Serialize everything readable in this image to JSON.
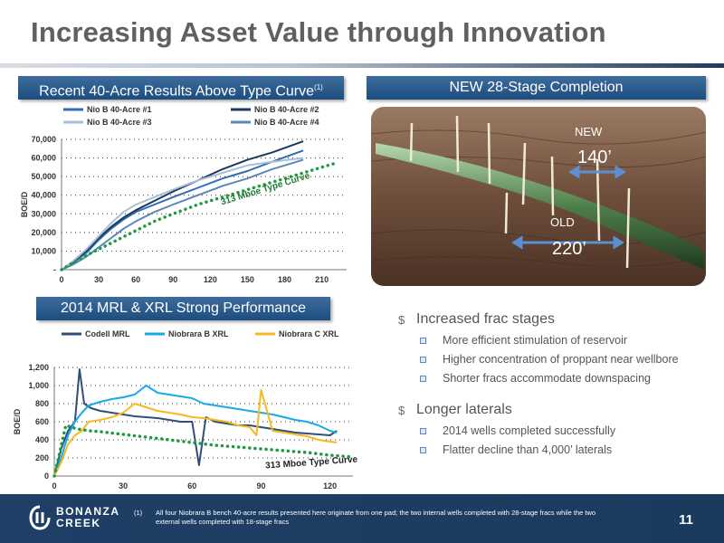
{
  "title": "Increasing Asset Value through Innovation",
  "chart1": {
    "header": "Recent 40-Acre Results Above Type Curve",
    "header_sup": "(1)"
  },
  "photo": {
    "header": "NEW 28-Stage Completion",
    "new_label": "NEW",
    "new_dist": "140’",
    "old_label": "OLD",
    "old_dist": "220’"
  },
  "chart2": {
    "header": "2014 MRL & XRL Strong Performance"
  },
  "colors": {
    "accent": "#1d4d7f",
    "curve_green": "#1f9a3e",
    "footer_bg": "#1f3f66"
  },
  "bullets": {
    "b1": "Increased frac stages",
    "b1_items": [
      "More efficient stimulation of reservoir",
      "Higher concentration of proppant near wellbore",
      "Shorter fracs accommodate downspacing"
    ],
    "b2": "Longer laterals",
    "b2_items": [
      "2014 wells completed successfully",
      "Flatter decline than 4,000’ laterals"
    ]
  },
  "footer": {
    "logo_line1": "BONANZA",
    "logo_line2": "CREEK",
    "note_num": "(1)",
    "note": "All four Niobrara B bench 40-acre results presented here originate from one pad; the two internal wells completed with 28-stage fracs while the two external wells completed with 18-stage fracs",
    "page": "11"
  },
  "chart_data": [
    {
      "type": "line",
      "ylabel": "BOE/D",
      "xlim": [
        0,
        230
      ],
      "ylim": [
        0,
        70000
      ],
      "xticks": [
        "0",
        "30",
        "60",
        "90",
        "120",
        "150",
        "180",
        "210"
      ],
      "yticks": [
        "-",
        "10,000",
        "20,000",
        "30,000",
        "40,000",
        "50,000",
        "60,000",
        "70,000"
      ],
      "legend_position": "top",
      "annotation": "313 Mboe Type Curve",
      "series": [
        {
          "name": "Nio B 40-Acre #1",
          "color": "#2f6db5",
          "x": [
            0,
            10,
            20,
            30,
            40,
            50,
            60,
            75,
            90,
            110,
            130,
            150,
            170,
            195
          ],
          "y": [
            0,
            4000,
            9000,
            16000,
            22000,
            27000,
            31000,
            35000,
            39000,
            44000,
            49000,
            53000,
            58000,
            64000
          ]
        },
        {
          "name": "Nio B 40-Acre #2",
          "color": "#1a3a5c",
          "x": [
            0,
            10,
            20,
            30,
            40,
            50,
            60,
            75,
            90,
            110,
            130,
            150,
            170,
            195
          ],
          "y": [
            0,
            4500,
            10000,
            17000,
            23000,
            28000,
            32000,
            37000,
            42000,
            48000,
            54000,
            59000,
            63000,
            69000
          ]
        },
        {
          "name": "Nio B 40-Acre #3",
          "color": "#a9bedb",
          "x": [
            0,
            10,
            20,
            30,
            40,
            50,
            60,
            75,
            90,
            110,
            130,
            150,
            170,
            195
          ],
          "y": [
            0,
            5000,
            11000,
            18000,
            25000,
            31000,
            35000,
            39000,
            43000,
            48000,
            52000,
            56000,
            58000,
            60000
          ]
        },
        {
          "name": "Nio B 40-Acre #4",
          "color": "#5b86b8",
          "x": [
            0,
            10,
            20,
            30,
            40,
            50,
            60,
            75,
            90,
            110,
            130,
            150,
            170,
            195
          ],
          "y": [
            0,
            3000,
            7000,
            12000,
            17000,
            22000,
            26000,
            31000,
            35000,
            40000,
            45000,
            49000,
            54000,
            59000
          ]
        },
        {
          "name": "",
          "dashed": true,
          "color": "#1f9a3e",
          "x": [
            0,
            15,
            30,
            45,
            60,
            75,
            90,
            110,
            130,
            150,
            170,
            190,
            205,
            220
          ],
          "y": [
            0,
            6000,
            11000,
            16000,
            21000,
            26000,
            30000,
            35000,
            39000,
            43000,
            47000,
            51000,
            54000,
            57000
          ]
        }
      ]
    },
    {
      "type": "line",
      "ylabel": "BOE/D",
      "xlim": [
        0,
        130
      ],
      "ylim": [
        0,
        1200
      ],
      "xticks": [
        "0",
        "30",
        "60",
        "90",
        "120"
      ],
      "yticks": [
        "0",
        "200",
        "400",
        "600",
        "800",
        "1,000",
        "1,200"
      ],
      "legend_position": "top",
      "annotation": "313 Mboe Type Curve",
      "series": [
        {
          "name": "Codell MRL",
          "color": "#2f4f7a",
          "x": [
            0,
            3,
            6,
            9,
            11,
            13,
            16,
            20,
            25,
            30,
            35,
            40,
            45,
            50,
            55,
            60,
            63,
            66,
            70,
            75,
            80,
            85,
            90,
            95,
            100,
            105,
            110,
            115,
            120,
            123
          ],
          "y": [
            0,
            300,
            500,
            600,
            1180,
            800,
            750,
            720,
            700,
            680,
            660,
            650,
            640,
            620,
            600,
            600,
            120,
            650,
            600,
            580,
            560,
            560,
            540,
            520,
            500,
            480,
            470,
            460,
            450,
            500
          ]
        },
        {
          "name": "Niobrara B XRL",
          "color": "#1aa9e8",
          "x": [
            0,
            3,
            6,
            9,
            12,
            15,
            20,
            25,
            30,
            35,
            40,
            45,
            50,
            55,
            60,
            65,
            70,
            75,
            80,
            85,
            90,
            95,
            100,
            105,
            110,
            115,
            120,
            123
          ],
          "y": [
            0,
            200,
            450,
            600,
            700,
            780,
            820,
            850,
            870,
            900,
            1000,
            920,
            900,
            880,
            860,
            800,
            780,
            760,
            740,
            720,
            700,
            680,
            650,
            620,
            600,
            560,
            500,
            480
          ]
        },
        {
          "name": "Niobrara C XRL",
          "color": "#f6b91e",
          "x": [
            0,
            3,
            6,
            9,
            12,
            15,
            20,
            25,
            30,
            35,
            40,
            45,
            50,
            55,
            60,
            65,
            70,
            75,
            80,
            85,
            88,
            90,
            95,
            100,
            105,
            110,
            115,
            120,
            123
          ],
          "y": [
            0,
            150,
            350,
            450,
            500,
            600,
            620,
            650,
            700,
            800,
            760,
            720,
            700,
            680,
            650,
            640,
            620,
            600,
            560,
            540,
            450,
            950,
            500,
            480,
            460,
            440,
            400,
            380,
            370
          ]
        },
        {
          "name": "",
          "dashed": true,
          "color": "#1f9a3e",
          "x": [
            0,
            5,
            10,
            15,
            20,
            30,
            40,
            50,
            60,
            70,
            80,
            90,
            100,
            110,
            120,
            130
          ],
          "y": [
            0,
            560,
            520,
            500,
            490,
            460,
            430,
            400,
            370,
            340,
            320,
            300,
            280,
            260,
            230,
            210
          ]
        }
      ]
    }
  ]
}
